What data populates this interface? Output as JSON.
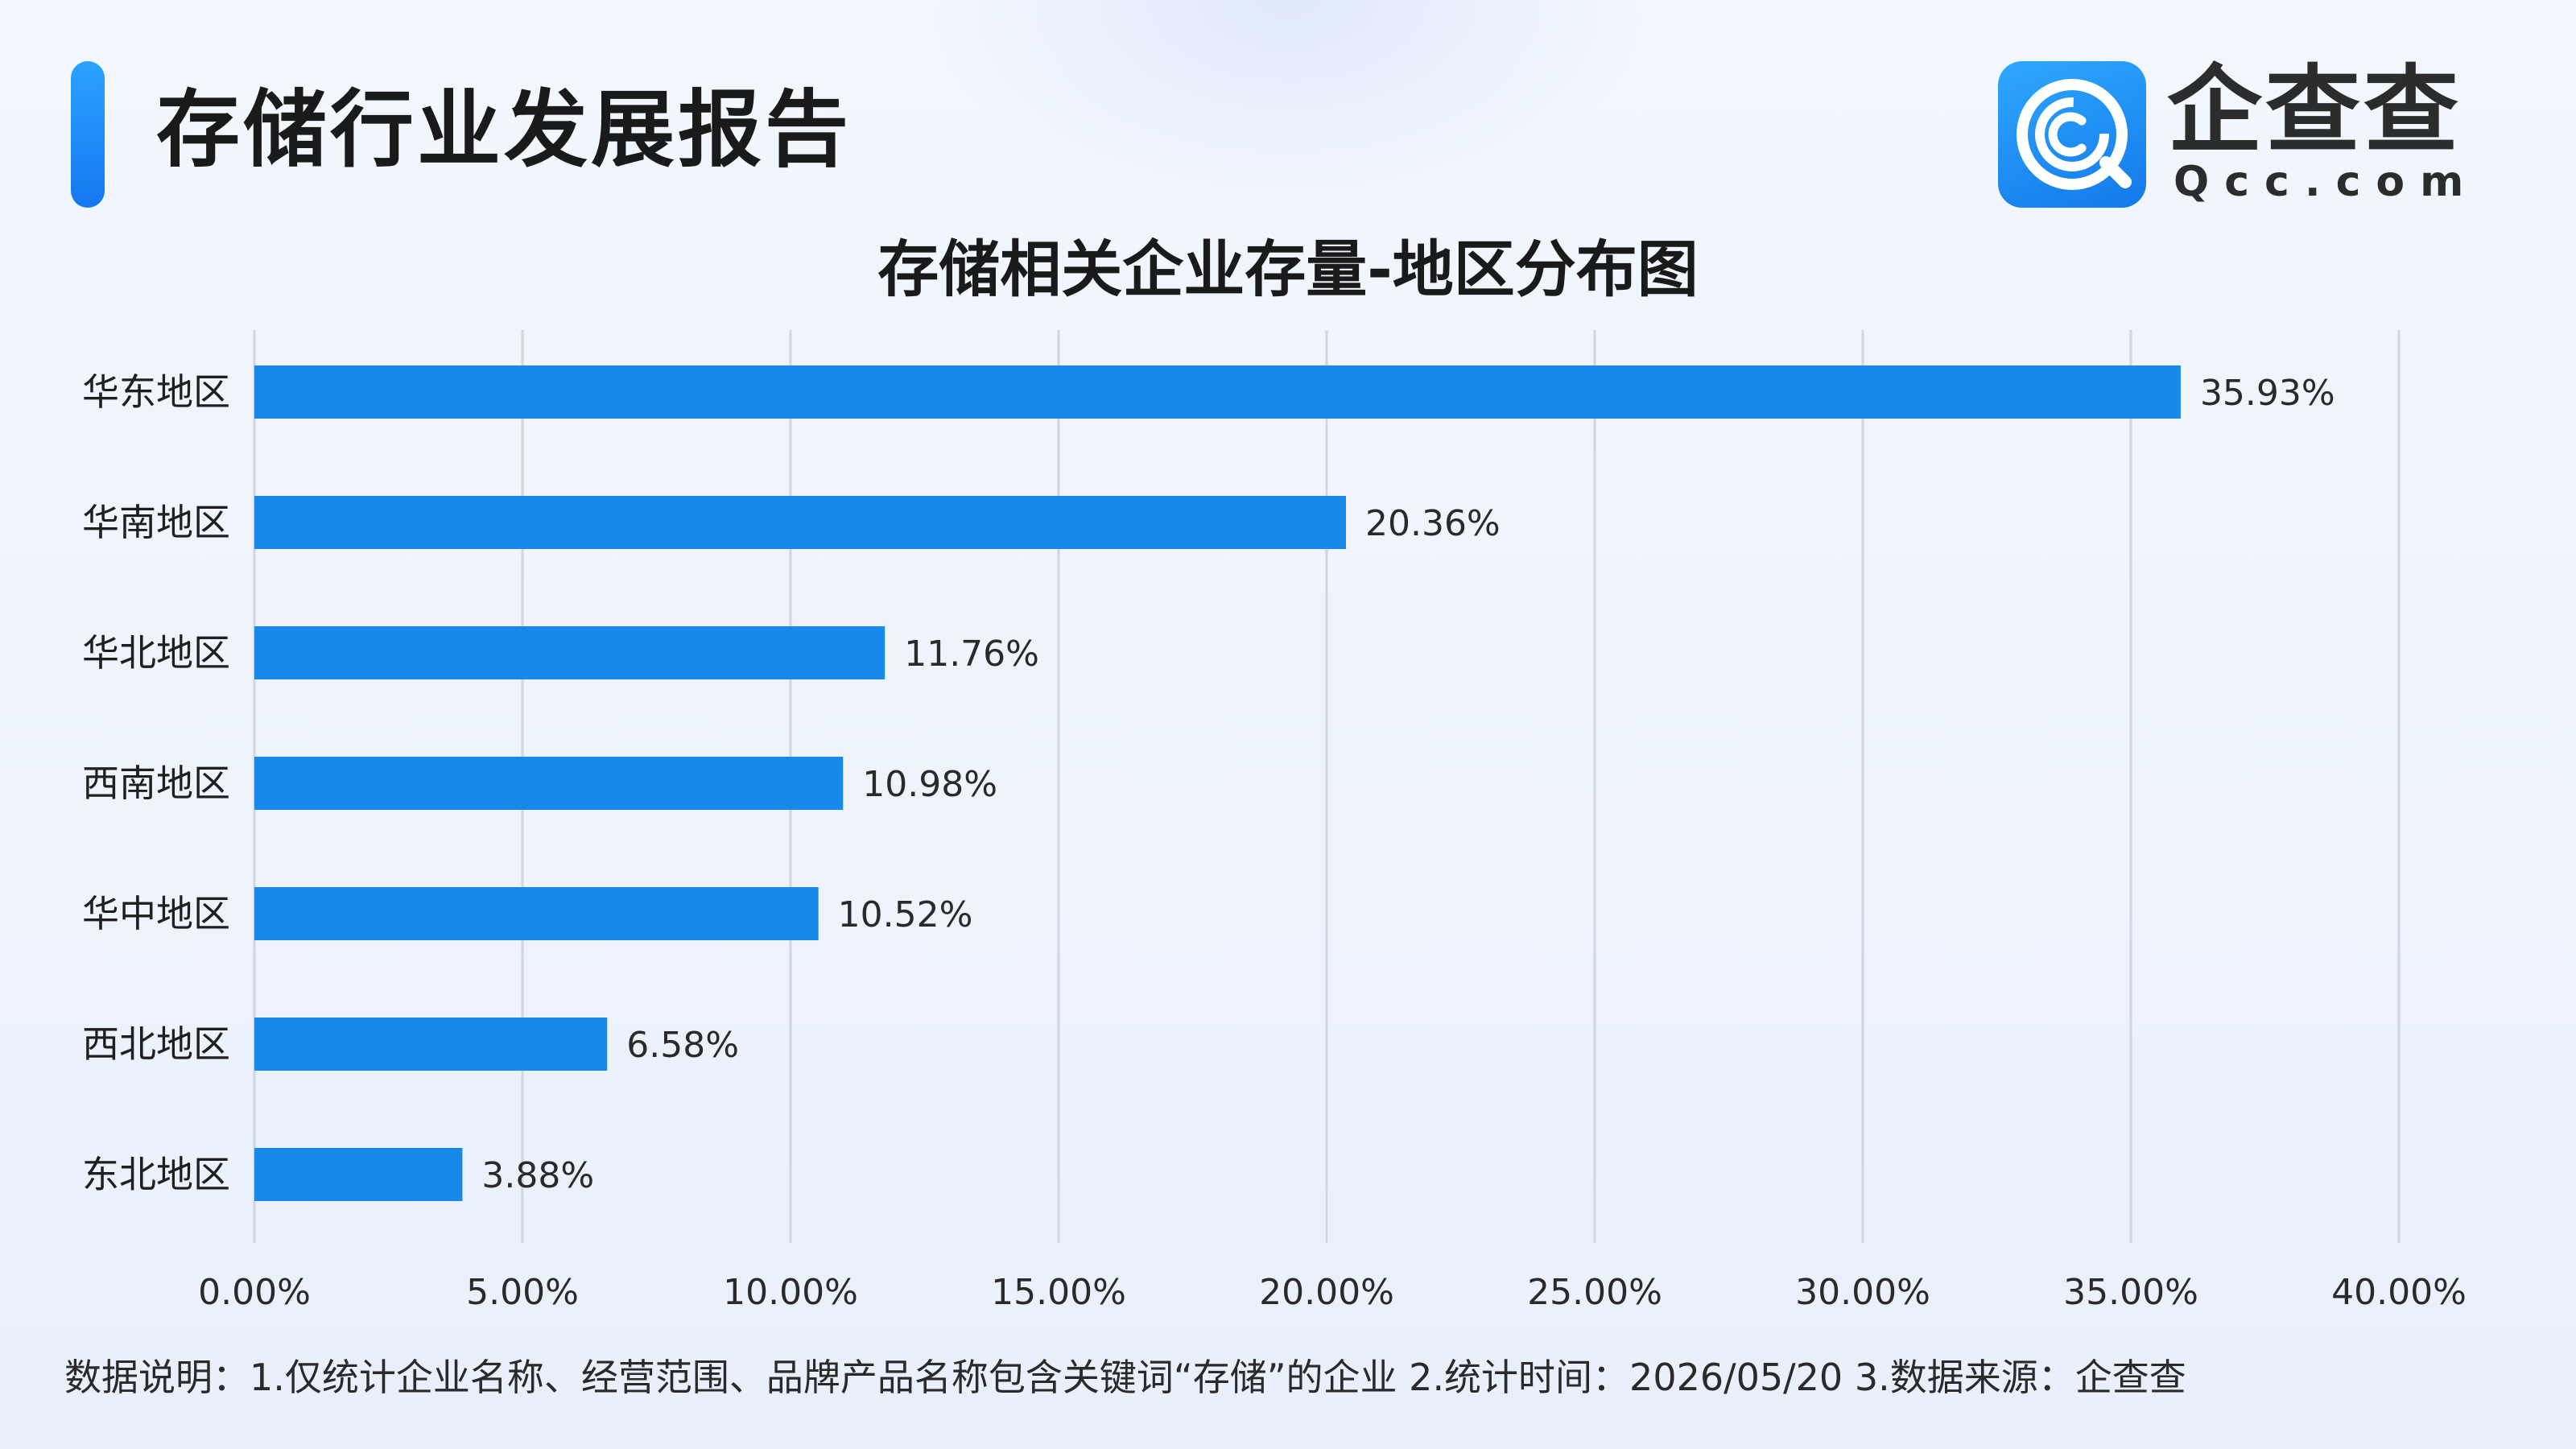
{
  "header": {
    "title": "存储行业发展报告",
    "logo": {
      "icon": "qcc-logo-icon",
      "name_cn": "企查查",
      "name_en": "Qcc.com"
    }
  },
  "footnote": "数据说明：1.仅统计企业名称、经营范围、品牌产品名称包含关键词“存储”的企业   2.统计时间：2026/05/20    3.数据来源：企查查",
  "colors": {
    "bar": "#1689ea",
    "grid": "#cfd6e2",
    "accent": "#1677f0"
  },
  "chart_data": {
    "type": "bar",
    "orientation": "horizontal",
    "title": "存储相关企业存量-地区分布图",
    "categories": [
      "华东地区",
      "华南地区",
      "华北地区",
      "西南地区",
      "华中地区",
      "西北地区",
      "东北地区"
    ],
    "values": [
      35.93,
      20.36,
      11.76,
      10.98,
      10.52,
      6.58,
      3.88
    ],
    "value_labels": [
      "35.93%",
      "20.36%",
      "11.76%",
      "10.98%",
      "10.52%",
      "6.58%",
      "3.88%"
    ],
    "xlim": [
      0,
      40
    ],
    "xticks": [
      0,
      5,
      10,
      15,
      20,
      25,
      30,
      35,
      40
    ],
    "xtick_labels": [
      "0.00%",
      "5.00%",
      "10.00%",
      "15.00%",
      "20.00%",
      "25.00%",
      "30.00%",
      "35.00%",
      "40.00%"
    ],
    "grid": true,
    "legend": false
  }
}
